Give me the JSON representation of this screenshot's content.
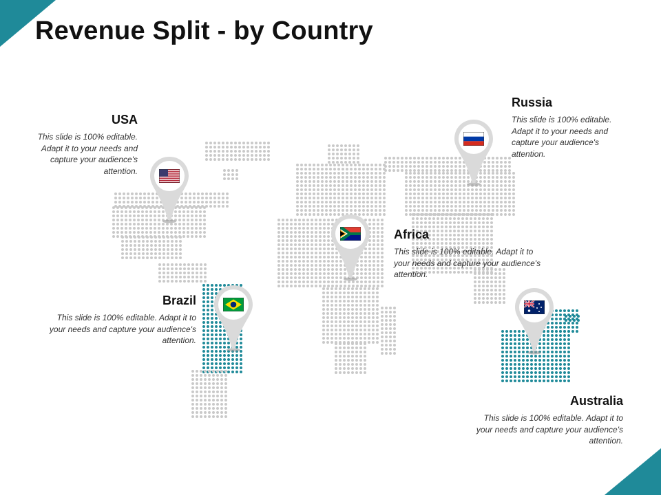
{
  "title": "Revenue Split - by Country",
  "accent_color": "#1f8a99",
  "map_dot_color": "#c9c9c9",
  "pin_color": "#d9d9d9",
  "countries": [
    {
      "key": "usa",
      "name": "USA",
      "flag": "usa-flag-icon",
      "desc": "This slide is 100% editable. Adapt it to your needs and capture your audience's attention."
    },
    {
      "key": "russia",
      "name": "Russia",
      "flag": "russia-flag-icon",
      "desc": "This slide is 100% editable. Adapt it to your needs and capture your audience's attention."
    },
    {
      "key": "africa",
      "name": "Africa",
      "flag": "south-africa-flag-icon",
      "desc": "This slide is 100% editable. Adapt it to your needs and capture your audience's attention."
    },
    {
      "key": "brazil",
      "name": "Brazil",
      "flag": "brazil-flag-icon",
      "desc": "This slide is 100% editable. Adapt it to your needs and capture your audience's attention."
    },
    {
      "key": "australia",
      "name": "Australia",
      "flag": "australia-flag-icon",
      "desc": "This slide is 100% editable. Adapt it to your needs and capture your audience's attention."
    }
  ]
}
